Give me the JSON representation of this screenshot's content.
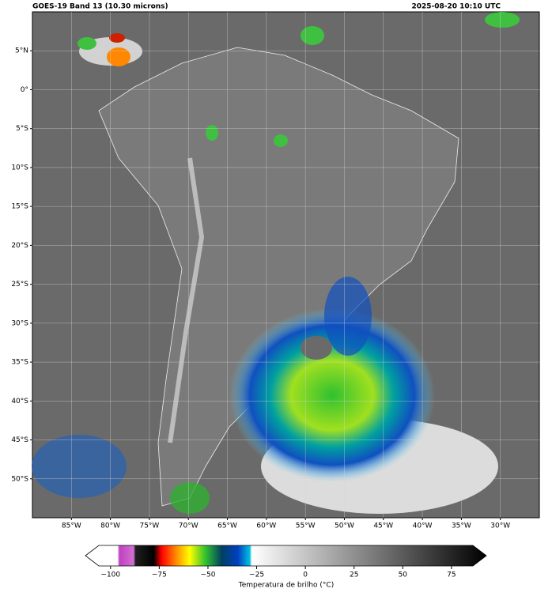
{
  "header": {
    "title": "GOES-19 Band 13 (10.30 microns)",
    "timestamp": "2025-08-20 10:10 UTC"
  },
  "map": {
    "lonlim": [
      -90,
      -25
    ],
    "latlim": [
      -55,
      10
    ],
    "lon_ticks": [
      {
        "value": -85,
        "label": "85°W"
      },
      {
        "value": -80,
        "label": "80°W"
      },
      {
        "value": -75,
        "label": "75°W"
      },
      {
        "value": -70,
        "label": "70°W"
      },
      {
        "value": -65,
        "label": "65°W"
      },
      {
        "value": -60,
        "label": "60°W"
      },
      {
        "value": -55,
        "label": "55°W"
      },
      {
        "value": -50,
        "label": "50°W"
      },
      {
        "value": -45,
        "label": "45°W"
      },
      {
        "value": -40,
        "label": "40°W"
      },
      {
        "value": -35,
        "label": "35°W"
      },
      {
        "value": -30,
        "label": "30°W"
      }
    ],
    "lat_ticks": [
      {
        "value": 5,
        "label": "5°N"
      },
      {
        "value": 0,
        "label": "0°"
      },
      {
        "value": -5,
        "label": "5°S"
      },
      {
        "value": -10,
        "label": "10°S"
      },
      {
        "value": -15,
        "label": "15°S"
      },
      {
        "value": -20,
        "label": "20°S"
      },
      {
        "value": -25,
        "label": "25°S"
      },
      {
        "value": -30,
        "label": "30°S"
      },
      {
        "value": -35,
        "label": "35°S"
      },
      {
        "value": -40,
        "label": "40°S"
      },
      {
        "value": -45,
        "label": "45°S"
      },
      {
        "value": -50,
        "label": "50°S"
      }
    ]
  },
  "colorbar": {
    "lim": [
      -106,
      86
    ],
    "ticks": [
      {
        "value": -100,
        "label": "−100"
      },
      {
        "value": -75,
        "label": "−75"
      },
      {
        "value": -50,
        "label": "−50"
      },
      {
        "value": -25,
        "label": "−25"
      },
      0,
      25,
      50,
      75
    ],
    "label": "Temperatura de brilho (°C)"
  }
}
